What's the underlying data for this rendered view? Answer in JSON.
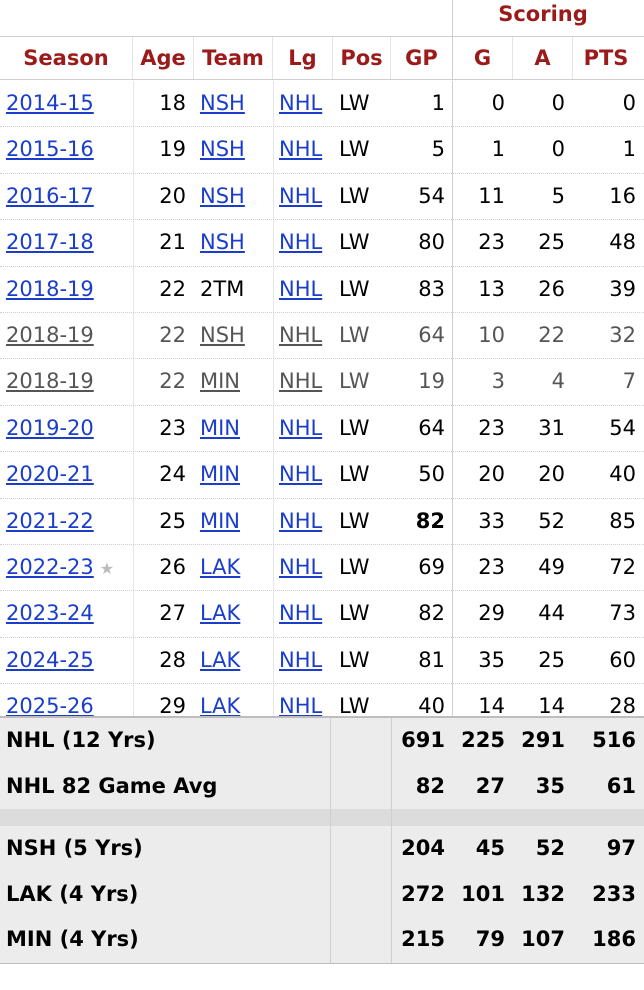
{
  "group_header": {
    "scoring": "Scoring"
  },
  "columns": {
    "season": "Season",
    "age": "Age",
    "team": "Team",
    "lg": "Lg",
    "pos": "Pos",
    "gp": "GP",
    "g": "G",
    "a": "A",
    "pts": "PTS"
  },
  "rows": [
    {
      "season": "2014-15",
      "age": "18",
      "team": "NSH",
      "lg": "NHL",
      "pos": "LW",
      "gp": "1",
      "g": "0",
      "a": "0",
      "pts": "0",
      "sub": false,
      "team_link": true
    },
    {
      "season": "2015-16",
      "age": "19",
      "team": "NSH",
      "lg": "NHL",
      "pos": "LW",
      "gp": "5",
      "g": "1",
      "a": "0",
      "pts": "1",
      "sub": false,
      "team_link": true
    },
    {
      "season": "2016-17",
      "age": "20",
      "team": "NSH",
      "lg": "NHL",
      "pos": "LW",
      "gp": "54",
      "g": "11",
      "a": "5",
      "pts": "16",
      "sub": false,
      "team_link": true
    },
    {
      "season": "2017-18",
      "age": "21",
      "team": "NSH",
      "lg": "NHL",
      "pos": "LW",
      "gp": "80",
      "g": "23",
      "a": "25",
      "pts": "48",
      "sub": false,
      "team_link": true
    },
    {
      "season": "2018-19",
      "age": "22",
      "team": "2TM",
      "lg": "NHL",
      "pos": "LW",
      "gp": "83",
      "g": "13",
      "a": "26",
      "pts": "39",
      "sub": false,
      "team_link": false
    },
    {
      "season": "2018-19",
      "age": "22",
      "team": "NSH",
      "lg": "NHL",
      "pos": "LW",
      "gp": "64",
      "g": "10",
      "a": "22",
      "pts": "32",
      "sub": true,
      "team_link": true
    },
    {
      "season": "2018-19",
      "age": "22",
      "team": "MIN",
      "lg": "NHL",
      "pos": "LW",
      "gp": "19",
      "g": "3",
      "a": "4",
      "pts": "7",
      "sub": true,
      "team_link": true
    },
    {
      "season": "2019-20",
      "age": "23",
      "team": "MIN",
      "lg": "NHL",
      "pos": "LW",
      "gp": "64",
      "g": "23",
      "a": "31",
      "pts": "54",
      "sub": false,
      "team_link": true
    },
    {
      "season": "2020-21",
      "age": "24",
      "team": "MIN",
      "lg": "NHL",
      "pos": "LW",
      "gp": "50",
      "g": "20",
      "a": "20",
      "pts": "40",
      "sub": false,
      "team_link": true
    },
    {
      "season": "2021-22",
      "age": "25",
      "team": "MIN",
      "lg": "NHL",
      "pos": "LW",
      "gp": "82",
      "g": "33",
      "a": "52",
      "pts": "85",
      "sub": false,
      "team_link": true,
      "gp_bold": true
    },
    {
      "season": "2022-23",
      "age": "26",
      "team": "LAK",
      "lg": "NHL",
      "pos": "LW",
      "gp": "69",
      "g": "23",
      "a": "49",
      "pts": "72",
      "sub": false,
      "team_link": true,
      "star": "★"
    },
    {
      "season": "2023-24",
      "age": "27",
      "team": "LAK",
      "lg": "NHL",
      "pos": "LW",
      "gp": "82",
      "g": "29",
      "a": "44",
      "pts": "73",
      "sub": false,
      "team_link": true
    },
    {
      "season": "2024-25",
      "age": "28",
      "team": "LAK",
      "lg": "NHL",
      "pos": "LW",
      "gp": "81",
      "g": "35",
      "a": "25",
      "pts": "60",
      "sub": false,
      "team_link": true
    },
    {
      "season": "2025-26",
      "age": "29",
      "team": "LAK",
      "lg": "NHL",
      "pos": "LW",
      "gp": "40",
      "g": "14",
      "a": "14",
      "pts": "28",
      "sub": false,
      "team_link": true
    }
  ],
  "totals": [
    {
      "label": "NHL (12 Yrs)",
      "gp": "691",
      "g": "225",
      "a": "291",
      "pts": "516"
    },
    {
      "label": "NHL 82 Game Avg",
      "gp": "82",
      "g": "27",
      "a": "35",
      "pts": "61"
    }
  ],
  "team_totals": [
    {
      "label": "NSH (5 Yrs)",
      "gp": "204",
      "g": "45",
      "a": "52",
      "pts": "97"
    },
    {
      "label": "LAK (4 Yrs)",
      "gp": "272",
      "g": "101",
      "a": "132",
      "pts": "233"
    },
    {
      "label": "MIN (4 Yrs)",
      "gp": "215",
      "g": "79",
      "a": "107",
      "pts": "186"
    }
  ],
  "colors": {
    "header_red": "#9b1b1b",
    "link_blue": "#1a3dcc",
    "footer_bg": "#ececec"
  }
}
